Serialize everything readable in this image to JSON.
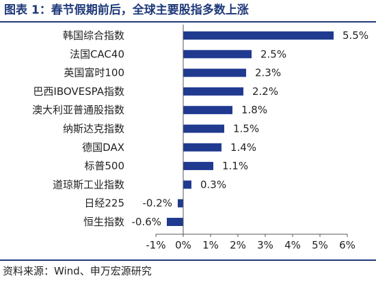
{
  "header": {
    "title": "图表 1：春节假期前后，全球主要股指多数上涨"
  },
  "footer": {
    "source": "资料来源：Wind、申万宏源研究"
  },
  "colors": {
    "bar": "#1f3a8f",
    "accent": "#1f3a7a"
  },
  "chart_data": {
    "type": "bar",
    "orientation": "horizontal",
    "title": "图表 1：春节假期前后，全球主要股指多数上涨",
    "xlabel": "",
    "ylabel": "",
    "categories": [
      "韩国综合指数",
      "法国CAC40",
      "英国富时100",
      "巴西IBOVESPA指数",
      "澳大利亚普通股指数",
      "纳斯达克指数",
      "德国DAX",
      "标普500",
      "道琼斯工业指数",
      "日经225",
      "恒生指数"
    ],
    "values": [
      5.5,
      2.5,
      2.3,
      2.2,
      1.8,
      1.5,
      1.4,
      1.1,
      0.3,
      -0.2,
      -0.6
    ],
    "value_labels": [
      "5.5%",
      "2.5%",
      "2.3%",
      "2.2%",
      "1.8%",
      "1.5%",
      "1.4%",
      "1.1%",
      "0.3%",
      "-0.2%",
      "-0.6%"
    ],
    "xlim": [
      -1,
      6
    ],
    "ticks": [
      -1,
      0,
      1,
      2,
      3,
      4,
      5,
      6
    ],
    "tick_labels": [
      "-1%",
      "0%",
      "1%",
      "2%",
      "3%",
      "4%",
      "5%",
      "6%"
    ],
    "grid": false,
    "legend": "none"
  }
}
